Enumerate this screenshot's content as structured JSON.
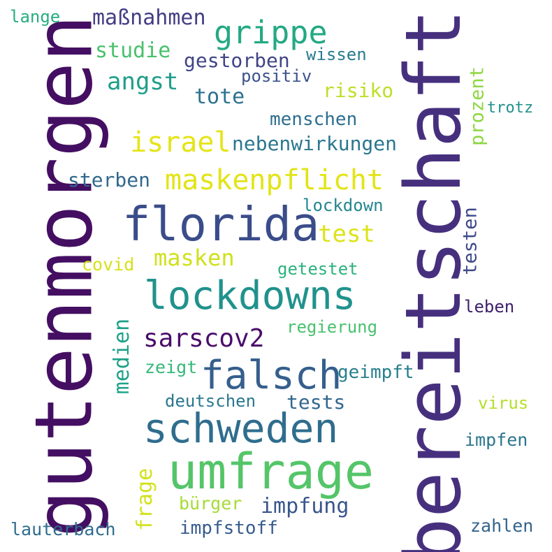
{
  "words": {
    "gutenmorgen": {
      "text": "gutenmorgen",
      "color": "#440f62"
    },
    "bereitschaft": {
      "text": "bereitschaft",
      "color": "#46307e"
    },
    "florida": {
      "text": "florida",
      "color": "#3a4c8a"
    },
    "umfrage": {
      "text": "umfrage",
      "color": "#54c568"
    },
    "schweden": {
      "text": "schweden",
      "color": "#2f6d8e"
    },
    "lockdowns": {
      "text": "lockdowns",
      "color": "#20928c"
    },
    "falsch": {
      "text": "falsch",
      "color": "#355f8d"
    },
    "grippe": {
      "text": "grippe",
      "color": "#23a983"
    },
    "maskenpflicht": {
      "text": "maskenpflicht",
      "color": "#e2e418"
    },
    "israel": {
      "text": "israel",
      "color": "#e5e419"
    },
    "sarscov2": {
      "text": "sarscov2",
      "color": "#4a0c6b"
    },
    "nebenwirkungen": {
      "text": "nebenwirkungen",
      "color": "#2a778e"
    },
    "massnahmen": {
      "text": "maßnahmen",
      "color": "#433e85"
    },
    "studie": {
      "text": "studie",
      "color": "#4ac16d"
    },
    "angst": {
      "text": "angst",
      "color": "#1f9e89"
    },
    "gestorben": {
      "text": "gestorben",
      "color": "#414487"
    },
    "wissen": {
      "text": "wissen",
      "color": "#297b8e"
    },
    "positiv": {
      "text": "positiv",
      "color": "#3b528b"
    },
    "tote": {
      "text": "tote",
      "color": "#2c728e"
    },
    "risiko": {
      "text": "risiko",
      "color": "#bddf26"
    },
    "menschen": {
      "text": "menschen",
      "color": "#2e6e8e"
    },
    "prozent": {
      "text": "prozent",
      "color": "#8fd744"
    },
    "trotz": {
      "text": "trotz",
      "color": "#21918c"
    },
    "lange": {
      "text": "lange",
      "color": "#27ad81"
    },
    "sterben": {
      "text": "sterben",
      "color": "#31688e"
    },
    "lockdown": {
      "text": "lockdown",
      "color": "#24878e"
    },
    "test": {
      "text": "test",
      "color": "#dde318"
    },
    "testen": {
      "text": "testen",
      "color": "#3e4a89"
    },
    "masken": {
      "text": "masken",
      "color": "#d0e11c"
    },
    "covid": {
      "text": "covid",
      "color": "#d5e21a"
    },
    "getestet": {
      "text": "getestet",
      "color": "#2db27d"
    },
    "leben": {
      "text": "leben",
      "color": "#3f1f6b"
    },
    "medien": {
      "text": "medien",
      "color": "#1fa188"
    },
    "regierung": {
      "text": "regierung",
      "color": "#48c16e"
    },
    "zeigt": {
      "text": "zeigt",
      "color": "#35b779"
    },
    "geimpft": {
      "text": "geimpft",
      "color": "#277f8e"
    },
    "deutschen": {
      "text": "deutschen",
      "color": "#2a788e"
    },
    "tests": {
      "text": "tests",
      "color": "#31678e"
    },
    "virus": {
      "text": "virus",
      "color": "#b5de2b"
    },
    "impfen": {
      "text": "impfen",
      "color": "#2b758e"
    },
    "frage": {
      "text": "frage",
      "color": "#d2e21b"
    },
    "buerger": {
      "text": "bürger",
      "color": "#a5db36"
    },
    "impfung": {
      "text": "impfung",
      "color": "#39568c"
    },
    "lauterbach": {
      "text": "lauterbach",
      "color": "#2f6c8e"
    },
    "impfstoff": {
      "text": "impfstoff",
      "color": "#365c8d"
    },
    "zahlen": {
      "text": "zahlen",
      "color": "#33638d"
    }
  }
}
